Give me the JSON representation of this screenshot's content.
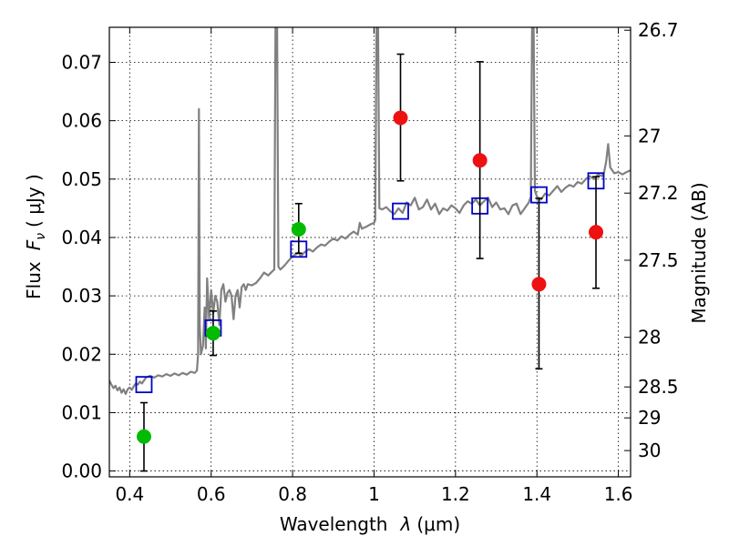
{
  "chart_data": {
    "type": "scatter",
    "title": "",
    "xlabel": "Wavelength",
    "xlabel_symbol": "λ",
    "xlabel_unit": "(μm)",
    "ylabel": "Flux",
    "ylabel_symbol": "F",
    "ylabel_subscript": "ν",
    "ylabel_unit": "( μJy )",
    "ylabel_right": "Magnitude (AB)",
    "xlim": [
      0.35,
      1.63
    ],
    "ylim": [
      -0.001,
      0.076
    ],
    "grid": true,
    "x_ticks": [
      {
        "value": 0.4,
        "label": "0.4"
      },
      {
        "value": 0.6,
        "label": "0.6"
      },
      {
        "value": 0.8,
        "label": "0.8"
      },
      {
        "value": 1.0,
        "label": "1"
      },
      {
        "value": 1.2,
        "label": "1.2"
      },
      {
        "value": 1.4,
        "label": "1.4"
      },
      {
        "value": 1.6,
        "label": "1.6"
      }
    ],
    "y_ticks": [
      {
        "value": 0.0,
        "label": "0.00"
      },
      {
        "value": 0.01,
        "label": "0.01"
      },
      {
        "value": 0.02,
        "label": "0.02"
      },
      {
        "value": 0.03,
        "label": "0.03"
      },
      {
        "value": 0.04,
        "label": "0.04"
      },
      {
        "value": 0.05,
        "label": "0.05"
      },
      {
        "value": 0.06,
        "label": "0.06"
      },
      {
        "value": 0.07,
        "label": "0.07"
      }
    ],
    "right_ticks": [
      {
        "flux": 0.0755,
        "label": "26.7"
      },
      {
        "flux": 0.0574,
        "label": "27"
      },
      {
        "flux": 0.0476,
        "label": "27.2"
      },
      {
        "flux": 0.0361,
        "label": "27.5"
      },
      {
        "flux": 0.0229,
        "label": "28"
      },
      {
        "flux": 0.0144,
        "label": "28.5"
      },
      {
        "flux": 0.0091,
        "label": "29"
      },
      {
        "flux": 0.0035,
        "label": "30"
      }
    ],
    "colors": {
      "spectrum": "#808080",
      "model": "#0000cc",
      "green": "#00bb00",
      "red": "#ee1111",
      "errorbar": "#000000"
    },
    "series": [
      {
        "name": "model spectrum",
        "kind": "line",
        "points": [
          [
            0.35,
            0.0155
          ],
          [
            0.355,
            0.0148
          ],
          [
            0.36,
            0.0142
          ],
          [
            0.365,
            0.0146
          ],
          [
            0.37,
            0.0138
          ],
          [
            0.375,
            0.0143
          ],
          [
            0.38,
            0.0134
          ],
          [
            0.385,
            0.014
          ],
          [
            0.39,
            0.0132
          ],
          [
            0.395,
            0.014
          ],
          [
            0.4,
            0.0143
          ],
          [
            0.405,
            0.0139
          ],
          [
            0.41,
            0.0145
          ],
          [
            0.415,
            0.015
          ],
          [
            0.42,
            0.0148
          ],
          [
            0.425,
            0.0153
          ],
          [
            0.43,
            0.015
          ],
          [
            0.435,
            0.0155
          ],
          [
            0.44,
            0.016
          ],
          [
            0.45,
            0.0163
          ],
          [
            0.46,
            0.016
          ],
          [
            0.47,
            0.0164
          ],
          [
            0.48,
            0.0162
          ],
          [
            0.49,
            0.0166
          ],
          [
            0.5,
            0.0163
          ],
          [
            0.51,
            0.0167
          ],
          [
            0.52,
            0.0164
          ],
          [
            0.53,
            0.0168
          ],
          [
            0.54,
            0.0165
          ],
          [
            0.55,
            0.017
          ],
          [
            0.56,
            0.0168
          ],
          [
            0.565,
            0.0172
          ],
          [
            0.568,
            0.02
          ],
          [
            0.57,
            0.062
          ],
          [
            0.572,
            0.025
          ],
          [
            0.575,
            0.02
          ],
          [
            0.58,
            0.0215
          ],
          [
            0.584,
            0.028
          ],
          [
            0.587,
            0.021
          ],
          [
            0.59,
            0.033
          ],
          [
            0.595,
            0.026
          ],
          [
            0.6,
            0.031
          ],
          [
            0.605,
            0.027
          ],
          [
            0.61,
            0.03
          ],
          [
            0.615,
            0.029
          ],
          [
            0.62,
            0.025
          ],
          [
            0.625,
            0.031
          ],
          [
            0.63,
            0.032
          ],
          [
            0.635,
            0.029
          ],
          [
            0.64,
            0.0305
          ],
          [
            0.645,
            0.031
          ],
          [
            0.65,
            0.03
          ],
          [
            0.655,
            0.026
          ],
          [
            0.66,
            0.03
          ],
          [
            0.665,
            0.031
          ],
          [
            0.67,
            0.028
          ],
          [
            0.675,
            0.0315
          ],
          [
            0.68,
            0.032
          ],
          [
            0.685,
            0.031
          ],
          [
            0.69,
            0.032
          ],
          [
            0.7,
            0.0318
          ],
          [
            0.71,
            0.0322
          ],
          [
            0.72,
            0.033
          ],
          [
            0.73,
            0.034
          ],
          [
            0.74,
            0.0335
          ],
          [
            0.75,
            0.0342
          ],
          [
            0.755,
            0.0345
          ],
          [
            0.758,
            0.076
          ],
          [
            0.762,
            0.076
          ],
          [
            0.765,
            0.035
          ],
          [
            0.77,
            0.0345
          ],
          [
            0.78,
            0.0352
          ],
          [
            0.79,
            0.036
          ],
          [
            0.8,
            0.0368
          ],
          [
            0.81,
            0.0372
          ],
          [
            0.815,
            0.0375
          ],
          [
            0.82,
            0.0368
          ],
          [
            0.83,
            0.0375
          ],
          [
            0.84,
            0.038
          ],
          [
            0.85,
            0.0376
          ],
          [
            0.86,
            0.0383
          ],
          [
            0.87,
            0.0388
          ],
          [
            0.88,
            0.0386
          ],
          [
            0.89,
            0.0393
          ],
          [
            0.9,
            0.0398
          ],
          [
            0.91,
            0.0395
          ],
          [
            0.92,
            0.0402
          ],
          [
            0.93,
            0.0398
          ],
          [
            0.94,
            0.0405
          ],
          [
            0.95,
            0.041
          ],
          [
            0.96,
            0.0405
          ],
          [
            0.965,
            0.0425
          ],
          [
            0.97,
            0.0415
          ],
          [
            0.98,
            0.0418
          ],
          [
            0.99,
            0.0422
          ],
          [
            1.0,
            0.0425
          ],
          [
            1.003,
            0.043
          ],
          [
            1.006,
            0.076
          ],
          [
            1.01,
            0.076
          ],
          [
            1.013,
            0.045
          ],
          [
            1.02,
            0.0448
          ],
          [
            1.03,
            0.0452
          ],
          [
            1.04,
            0.0445
          ],
          [
            1.05,
            0.044
          ],
          [
            1.06,
            0.045
          ],
          [
            1.07,
            0.0442
          ],
          [
            1.08,
            0.046
          ],
          [
            1.09,
            0.0455
          ],
          [
            1.1,
            0.0468
          ],
          [
            1.11,
            0.0448
          ],
          [
            1.12,
            0.0452
          ],
          [
            1.13,
            0.0465
          ],
          [
            1.14,
            0.0448
          ],
          [
            1.15,
            0.0458
          ],
          [
            1.16,
            0.044
          ],
          [
            1.17,
            0.045
          ],
          [
            1.18,
            0.0446
          ],
          [
            1.19,
            0.0455
          ],
          [
            1.2,
            0.045
          ],
          [
            1.21,
            0.0442
          ],
          [
            1.22,
            0.0455
          ],
          [
            1.23,
            0.0462
          ],
          [
            1.24,
            0.0458
          ],
          [
            1.25,
            0.0465
          ],
          [
            1.26,
            0.0455
          ],
          [
            1.27,
            0.0462
          ],
          [
            1.28,
            0.0468
          ],
          [
            1.29,
            0.0452
          ],
          [
            1.3,
            0.046
          ],
          [
            1.31,
            0.0448
          ],
          [
            1.32,
            0.045
          ],
          [
            1.33,
            0.044
          ],
          [
            1.34,
            0.0455
          ],
          [
            1.35,
            0.0458
          ],
          [
            1.36,
            0.044
          ],
          [
            1.37,
            0.045
          ],
          [
            1.38,
            0.046
          ],
          [
            1.385,
            0.047
          ],
          [
            1.388,
            0.076
          ],
          [
            1.392,
            0.076
          ],
          [
            1.395,
            0.048
          ],
          [
            1.4,
            0.047
          ],
          [
            1.41,
            0.0465
          ],
          [
            1.42,
            0.0475
          ],
          [
            1.43,
            0.0472
          ],
          [
            1.44,
            0.048
          ],
          [
            1.45,
            0.0488
          ],
          [
            1.46,
            0.0478
          ],
          [
            1.47,
            0.0485
          ],
          [
            1.48,
            0.049
          ],
          [
            1.49,
            0.0487
          ],
          [
            1.5,
            0.0495
          ],
          [
            1.51,
            0.0492
          ],
          [
            1.52,
            0.05
          ],
          [
            1.53,
            0.0505
          ],
          [
            1.54,
            0.05
          ],
          [
            1.55,
            0.0508
          ],
          [
            1.56,
            0.0505
          ],
          [
            1.565,
            0.0512
          ],
          [
            1.57,
            0.053
          ],
          [
            1.575,
            0.056
          ],
          [
            1.58,
            0.052
          ],
          [
            1.585,
            0.0515
          ],
          [
            1.59,
            0.051
          ],
          [
            1.6,
            0.0512
          ],
          [
            1.61,
            0.0508
          ],
          [
            1.62,
            0.0512
          ],
          [
            1.63,
            0.0515
          ]
        ]
      },
      {
        "name": "model photometry",
        "kind": "square",
        "points": [
          [
            0.435,
            0.0148
          ],
          [
            0.605,
            0.0245
          ],
          [
            0.815,
            0.038
          ],
          [
            1.065,
            0.0445
          ],
          [
            1.26,
            0.0454
          ],
          [
            1.405,
            0.0473
          ],
          [
            1.545,
            0.0497
          ]
        ]
      },
      {
        "name": "green detections",
        "kind": "circle",
        "color_key": "green",
        "points": [
          {
            "x": 0.435,
            "y": 0.0059,
            "err_lo": 0.0,
            "err_hi": 0.0117
          },
          {
            "x": 0.605,
            "y": 0.0236,
            "err_lo": 0.0198,
            "err_hi": 0.0274
          },
          {
            "x": 0.815,
            "y": 0.0414,
            "err_lo": 0.0373,
            "err_hi": 0.0458
          }
        ]
      },
      {
        "name": "red detections",
        "kind": "circle",
        "color_key": "red",
        "points": [
          {
            "x": 1.065,
            "y": 0.0605,
            "err_lo": 0.0497,
            "err_hi": 0.0714
          },
          {
            "x": 1.26,
            "y": 0.0532,
            "err_lo": 0.0364,
            "err_hi": 0.0701
          },
          {
            "x": 1.405,
            "y": 0.032,
            "err_lo": 0.0175,
            "err_hi": 0.0467
          },
          {
            "x": 1.545,
            "y": 0.0409,
            "err_lo": 0.0313,
            "err_hi": 0.0504
          }
        ]
      }
    ]
  }
}
